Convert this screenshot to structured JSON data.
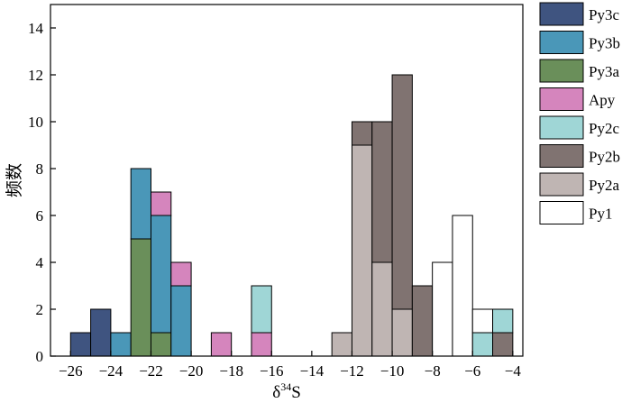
{
  "chart_data": {
    "type": "bar",
    "stacked": true,
    "bin_width": 1,
    "xlabel": "δ",
    "xlabel_sup": "34",
    "xlabel_suffix": "S",
    "ylabel": "频数",
    "xlim": [
      -27,
      -3.5
    ],
    "ylim": [
      0,
      15
    ],
    "xticks": [
      -26,
      -24,
      -22,
      -20,
      -18,
      -16,
      -14,
      -12,
      -10,
      -8,
      -6,
      -4
    ],
    "xtick_labels": [
      "−26",
      "−24",
      "−22",
      "−20",
      "−18",
      "−16",
      "−14",
      "−12",
      "−10",
      "−8",
      "−6",
      "−4"
    ],
    "yticks": [
      0,
      2,
      4,
      6,
      8,
      10,
      12,
      14
    ],
    "ytick_labels": [
      "0",
      "2",
      "4",
      "6",
      "8",
      "10",
      "12",
      "14"
    ],
    "legend_position": "right",
    "series": [
      {
        "name": "Py3c",
        "color": "#3f5480",
        "bins": [
          {
            "x0": -26,
            "count": 1
          },
          {
            "x0": -25,
            "count": 2
          }
        ]
      },
      {
        "name": "Py3b",
        "color": "#4a97b8",
        "bins": [
          {
            "x0": -24,
            "count": 1
          },
          {
            "x0": -23,
            "count": 3
          },
          {
            "x0": -22,
            "count": 5
          },
          {
            "x0": -21,
            "count": 3
          }
        ]
      },
      {
        "name": "Py3a",
        "color": "#6a8f5a",
        "bins": [
          {
            "x0": -23,
            "count": 5
          },
          {
            "x0": -22,
            "count": 1
          }
        ]
      },
      {
        "name": "Apy",
        "color": "#d585bd",
        "bins": [
          {
            "x0": -22,
            "count": 1
          },
          {
            "x0": -21,
            "count": 1
          },
          {
            "x0": -19,
            "count": 1
          },
          {
            "x0": -17,
            "count": 1
          }
        ]
      },
      {
        "name": "Py2c",
        "color": "#9fd6d6",
        "bins": [
          {
            "x0": -17,
            "count": 2
          },
          {
            "x0": -6,
            "count": 1
          },
          {
            "x0": -5,
            "count": 1
          }
        ]
      },
      {
        "name": "Py2b",
        "color": "#807371",
        "bins": [
          {
            "x0": -12,
            "count": 1
          },
          {
            "x0": -11,
            "count": 6
          },
          {
            "x0": -10,
            "count": 10
          },
          {
            "x0": -9,
            "count": 3
          },
          {
            "x0": -5,
            "count": 1
          }
        ]
      },
      {
        "name": "Py2a",
        "color": "#bfb5b3",
        "bins": [
          {
            "x0": -13,
            "count": 1
          },
          {
            "x0": -12,
            "count": 9
          },
          {
            "x0": -11,
            "count": 4
          },
          {
            "x0": -10,
            "count": 2
          }
        ]
      },
      {
        "name": "Py1",
        "color": "#ffffff",
        "bins": [
          {
            "x0": -8,
            "count": 4
          },
          {
            "x0": -7,
            "count": 6
          },
          {
            "x0": -6,
            "count": 1
          }
        ]
      }
    ],
    "stack_order": [
      "Py2a",
      "Py2b",
      "Py3c",
      "Py3a",
      "Py3b",
      "Apy",
      "Py2c",
      "Py1"
    ],
    "legend_order": [
      "Py3c",
      "Py3b",
      "Py3a",
      "Apy",
      "Py2c",
      "Py2b",
      "Py2a",
      "Py1"
    ]
  }
}
